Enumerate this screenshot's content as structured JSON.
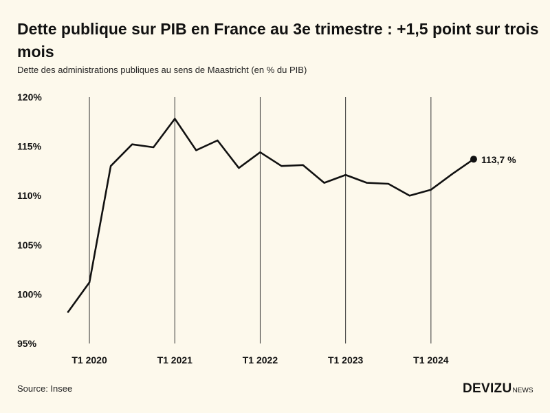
{
  "header": {
    "title": "Dette publique sur PIB en France au 3e trimestre : +1,5 point sur trois mois",
    "subtitle": "Dette des administrations publiques au sens de Maastricht (en % du PIB)"
  },
  "footer": {
    "source": "Source: Insee",
    "logo_main": "DEVIZU",
    "logo_sub": "NEWS"
  },
  "chart_data": {
    "type": "line",
    "title": "Dette publique sur PIB en France au 3e trimestre : +1,5 point sur trois mois",
    "subtitle": "Dette des administrations publiques au sens de Maastricht (en % du PIB)",
    "xlabel": "",
    "ylabel": "",
    "ylim": [
      95,
      120
    ],
    "yticks": [
      95,
      100,
      105,
      110,
      115,
      120
    ],
    "ytick_labels": [
      "95%",
      "100%",
      "105%",
      "110%",
      "115%",
      "120%"
    ],
    "xtick_labels": [
      "T1 2020",
      "T1 2021",
      "T1 2022",
      "T1 2023",
      "T1 2024"
    ],
    "xtick_index": [
      1,
      5,
      9,
      13,
      17
    ],
    "grid": "vertical lines at each T1",
    "x": [
      "T4 2019",
      "T1 2020",
      "T2 2020",
      "T3 2020",
      "T4 2020",
      "T1 2021",
      "T2 2021",
      "T3 2021",
      "T4 2021",
      "T1 2022",
      "T2 2022",
      "T3 2022",
      "T4 2022",
      "T1 2023",
      "T2 2023",
      "T3 2023",
      "T4 2023",
      "T1 2024",
      "T2 2024",
      "T3 2024"
    ],
    "series": [
      {
        "values": [
          98.2,
          101.2,
          113.0,
          115.2,
          114.9,
          117.8,
          114.6,
          115.6,
          112.8,
          114.4,
          113.0,
          113.1,
          111.3,
          112.1,
          111.3,
          111.2,
          110.0,
          110.6,
          112.2,
          113.7
        ],
        "color": "#111111"
      }
    ],
    "annotation": {
      "text": "113,7 %",
      "index": 19
    }
  }
}
